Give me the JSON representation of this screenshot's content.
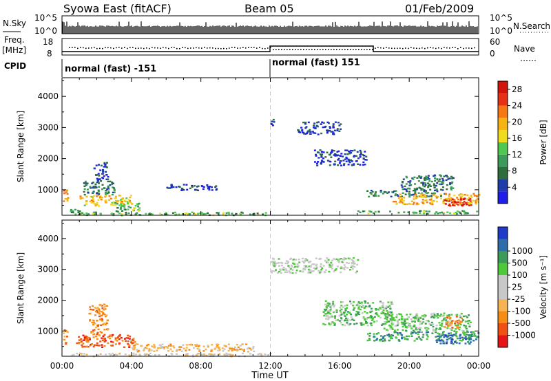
{
  "header": {
    "station": "Syowa East (fitACF)",
    "beam": "Beam 05",
    "date": "01/Feb/2009"
  },
  "strip": {
    "nsky_label": "N.Sky",
    "nsky_ticks": [
      "10^5",
      "10^0"
    ],
    "nsearch_label": "N.Search",
    "nsearch_ticks": [
      "10^5",
      "10^0"
    ],
    "freq_label_1": "Freq.",
    "freq_label_2": "[MHz]",
    "freq_ticks": [
      "18",
      "8"
    ],
    "nave_label": "Nave",
    "nave_ticks": [
      "60",
      "0"
    ],
    "cpid_label": "CPID",
    "cpid_segments": [
      "normal (fast) -151",
      "normal (fast) 151"
    ]
  },
  "colors": {
    "power_scale": [
      "#1e1ee6",
      "#1e3caa",
      "#2d6e3c",
      "#3c9b5a",
      "#50c850",
      "#f0dc1e",
      "#f5b414",
      "#f57814",
      "#e63214",
      "#d2140a"
    ],
    "velocity_scale": [
      "#e61414",
      "#f05014",
      "#f58c14",
      "#f5b450",
      "#c8c8c8",
      "#c8c8c8",
      "#50c83c",
      "#3c9b5a",
      "#2d6eaa",
      "#1e3cc8"
    ]
  },
  "chart_data": [
    {
      "type": "heatmap",
      "name": "power-panel",
      "ylabel": "Slant Range [km]",
      "x": [
        "00:00",
        "04:00",
        "08:00",
        "12:00",
        "16:00",
        "20:00",
        "00:00"
      ],
      "y_ticks": [
        "1000",
        "2000",
        "3000",
        "4000"
      ],
      "xlim_hours": [
        0,
        24
      ],
      "ylim_km": [
        180,
        4600
      ],
      "colorbar_title": "Power [dB]",
      "colorbar_ticks": [
        "4",
        "8",
        "12",
        "16",
        "20",
        "24",
        "28"
      ],
      "colorbar_range": [
        0,
        30
      ],
      "regions": [
        {
          "t0": 0.0,
          "t1": 0.3,
          "r0": 600,
          "r1": 1100,
          "level": 22
        },
        {
          "t0": 0.3,
          "t1": 1.0,
          "r0": 250,
          "r1": 400,
          "level": 10
        },
        {
          "t0": 1.0,
          "t1": 4.0,
          "r0": 500,
          "r1": 850,
          "level": 18
        },
        {
          "t0": 1.2,
          "t1": 3.0,
          "r0": 850,
          "r1": 1300,
          "level": 8
        },
        {
          "t0": 1.8,
          "t1": 2.6,
          "r0": 1300,
          "r1": 1900,
          "level": 4
        },
        {
          "t0": 3.0,
          "t1": 4.5,
          "r0": 300,
          "r1": 600,
          "level": 12
        },
        {
          "t0": 0.5,
          "t1": 12.0,
          "r0": 200,
          "r1": 300,
          "level": 12
        },
        {
          "t0": 6.0,
          "t1": 9.0,
          "r0": 1000,
          "r1": 1200,
          "level": 4
        },
        {
          "t0": 12.0,
          "t1": 12.2,
          "r0": 3000,
          "r1": 3300,
          "level": 4
        },
        {
          "t0": 13.5,
          "t1": 16.0,
          "r0": 2800,
          "r1": 3200,
          "level": 4
        },
        {
          "t0": 14.5,
          "t1": 17.5,
          "r0": 1800,
          "r1": 2300,
          "level": 4
        },
        {
          "t0": 17.0,
          "t1": 24.0,
          "r0": 250,
          "r1": 350,
          "level": 12
        },
        {
          "t0": 17.5,
          "t1": 22.0,
          "r0": 800,
          "r1": 1000,
          "level": 8
        },
        {
          "t0": 19.0,
          "t1": 24.0,
          "r0": 550,
          "r1": 900,
          "level": 20
        },
        {
          "t0": 22.0,
          "t1": 23.6,
          "r0": 500,
          "r1": 750,
          "level": 28
        },
        {
          "t0": 19.5,
          "t1": 22.5,
          "r0": 1000,
          "r1": 1500,
          "level": 8
        }
      ]
    },
    {
      "type": "heatmap",
      "name": "velocity-panel",
      "ylabel": "Slant Range [km]",
      "xlabel": "Time UT",
      "x": [
        "00:00",
        "04:00",
        "08:00",
        "12:00",
        "16:00",
        "20:00",
        "00:00"
      ],
      "y_ticks": [
        "1000",
        "2000",
        "3000",
        "4000"
      ],
      "xlim_hours": [
        0,
        24
      ],
      "ylim_km": [
        180,
        4600
      ],
      "colorbar_title": "Velocity [m s⁻¹]",
      "colorbar_ticks": [
        "-1000",
        "-500",
        "-100",
        "-25",
        "25",
        "100",
        "500",
        "1000"
      ],
      "regions": [
        {
          "t0": 0.0,
          "t1": 0.3,
          "r0": 600,
          "r1": 1100,
          "class": 2
        },
        {
          "t0": 0.8,
          "t1": 4.2,
          "r0": 500,
          "r1": 900,
          "class": 1
        },
        {
          "t0": 1.5,
          "t1": 2.6,
          "r0": 900,
          "r1": 1900,
          "class": 2
        },
        {
          "t0": 0.5,
          "t1": 12.0,
          "r0": 200,
          "r1": 300,
          "class": 4
        },
        {
          "t0": 4.0,
          "t1": 11.0,
          "r0": 350,
          "r1": 600,
          "class": 3
        },
        {
          "t0": 12.0,
          "t1": 17.0,
          "r0": 2900,
          "r1": 3400,
          "class": 5
        },
        {
          "t0": 15.0,
          "t1": 19.0,
          "r0": 1200,
          "r1": 2000,
          "class": 6
        },
        {
          "t0": 17.5,
          "t1": 24.0,
          "r0": 700,
          "r1": 1000,
          "class": 7
        },
        {
          "t0": 18.5,
          "t1": 23.5,
          "r0": 1000,
          "r1": 1600,
          "class": 6
        },
        {
          "t0": 21.5,
          "t1": 23.5,
          "r0": 600,
          "r1": 900,
          "class": 8
        },
        {
          "t0": 22.0,
          "t1": 23.0,
          "r0": 1100,
          "r1": 1500,
          "class": 2
        }
      ]
    }
  ]
}
